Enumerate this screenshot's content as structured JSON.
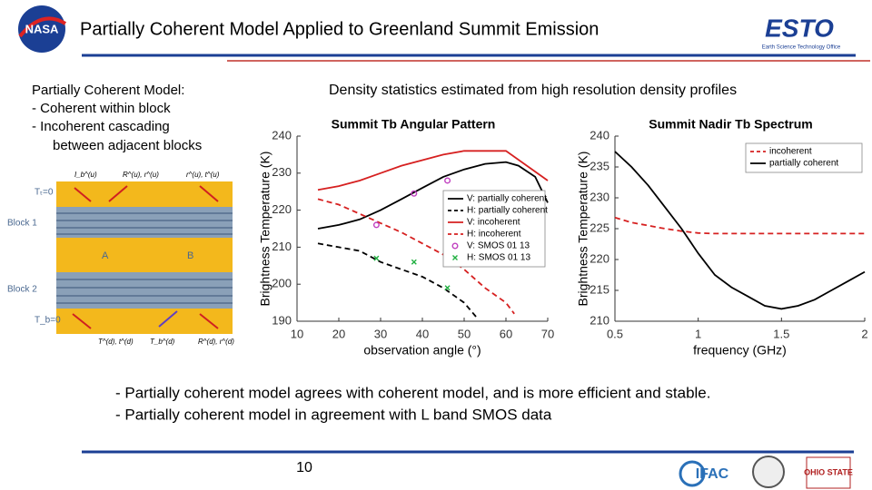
{
  "header": {
    "title": "Partially Coherent Model Applied to Greenland Summit Emission"
  },
  "logos": {
    "left": "NASA",
    "right": "ESTO",
    "right_sub": "Earth Science Technology Office",
    "footer": [
      "IFAC",
      "OHIO STATE"
    ]
  },
  "left_text": {
    "heading": "Partially Coherent Model:",
    "items": [
      "- Coherent within block",
      "- Incoherent cascading",
      "between adjacent blocks"
    ]
  },
  "diagram": {
    "labels": [
      "Tₜ=0",
      "Block 1",
      "Block 2",
      "T_b=0",
      "A",
      "B"
    ],
    "arrows": [
      "I_b^(u)",
      "R^(u), r^(u)",
      "r^(u), t^(u)",
      "T^(d), t^(d)",
      "T_b^(d)",
      "R^(d), r^(d)"
    ]
  },
  "subtitle": "Density statistics estimated from high resolution density profiles",
  "chart_data": [
    {
      "type": "line",
      "title": "Summit Tb Angular Pattern",
      "xlabel": "observation angle (°)",
      "ylabel": "Brightness Temperature (K)",
      "xlim": [
        10,
        70
      ],
      "xticks": [
        10,
        20,
        30,
        40,
        50,
        60,
        70
      ],
      "ylim": [
        190,
        240
      ],
      "yticks": [
        190,
        200,
        210,
        220,
        230,
        240
      ],
      "legend": "upper right",
      "series": [
        {
          "name": "V: partially coherent",
          "color": "#000000",
          "style": "solid",
          "x": [
            15,
            20,
            25,
            28,
            30,
            35,
            40,
            45,
            50,
            55,
            60,
            63,
            67,
            70
          ],
          "values": [
            215,
            216,
            217.5,
            219,
            220,
            223,
            226,
            229,
            231,
            232.5,
            233,
            232,
            229,
            222
          ]
        },
        {
          "name": "H: partially coherent",
          "color": "#000000",
          "style": "dashed",
          "x": [
            15,
            20,
            25,
            30,
            35,
            40,
            45,
            50,
            53
          ],
          "values": [
            211,
            210,
            209,
            206,
            204,
            202,
            199,
            195,
            191
          ]
        },
        {
          "name": "V: incoherent",
          "color": "#d62020",
          "style": "solid",
          "x": [
            15,
            20,
            25,
            30,
            35,
            40,
            45,
            50,
            55,
            60,
            65,
            70
          ],
          "values": [
            225.5,
            226.5,
            228,
            230,
            232,
            233.5,
            235,
            236,
            236,
            236,
            232,
            228
          ]
        },
        {
          "name": "H: incoherent",
          "color": "#d62020",
          "style": "dashed",
          "x": [
            15,
            20,
            25,
            30,
            35,
            40,
            45,
            50,
            55,
            60,
            62
          ],
          "values": [
            223,
            221.5,
            219,
            216.5,
            214,
            211,
            208,
            204,
            199,
            195,
            192
          ]
        },
        {
          "name": "V: SMOS 01 13",
          "color": "#c040c0",
          "style": "none",
          "marker": "circle",
          "x": [
            29,
            38,
            46
          ],
          "values": [
            216,
            224.5,
            228
          ]
        },
        {
          "name": "H: SMOS 01 13",
          "color": "#20b040",
          "style": "none",
          "marker": "cross",
          "x": [
            29,
            38,
            46
          ],
          "values": [
            207,
            206,
            199
          ]
        }
      ]
    },
    {
      "type": "line",
      "title": "Summit Nadir Tb Spectrum",
      "xlabel": "frequency (GHz)",
      "ylabel": "Brightness Temperature (K)",
      "xlim": [
        0.5,
        2
      ],
      "xticks": [
        0.5,
        1,
        1.5,
        2
      ],
      "ylim": [
        210,
        240
      ],
      "yticks": [
        210,
        215,
        220,
        225,
        230,
        235,
        240
      ],
      "legend": "upper right",
      "series": [
        {
          "name": "incoherent",
          "color": "#d62020",
          "style": "dashed",
          "x": [
            0.5,
            0.6,
            0.7,
            0.8,
            0.9,
            1.0,
            1.1,
            1.5,
            2
          ],
          "values": [
            226.8,
            226,
            225.5,
            225,
            224.6,
            224.3,
            224.2,
            224.2,
            224.2
          ]
        },
        {
          "name": "partially coherent",
          "color": "#000000",
          "style": "solid",
          "x": [
            0.5,
            0.6,
            0.7,
            0.8,
            0.9,
            1.0,
            1.1,
            1.2,
            1.3,
            1.4,
            1.5,
            1.6,
            1.7,
            1.8,
            1.9,
            2.0
          ],
          "values": [
            237.5,
            235,
            232,
            228.5,
            225,
            221,
            217.5,
            215.5,
            214,
            212.5,
            212,
            212.5,
            213.5,
            215,
            216.5,
            218
          ]
        }
      ]
    }
  ],
  "bullets": [
    "- Partially coherent model agrees with coherent model, and is more efficient and stable.",
    "- Partially coherent model in agreement with L band SMOS data"
  ],
  "page_number": "10"
}
